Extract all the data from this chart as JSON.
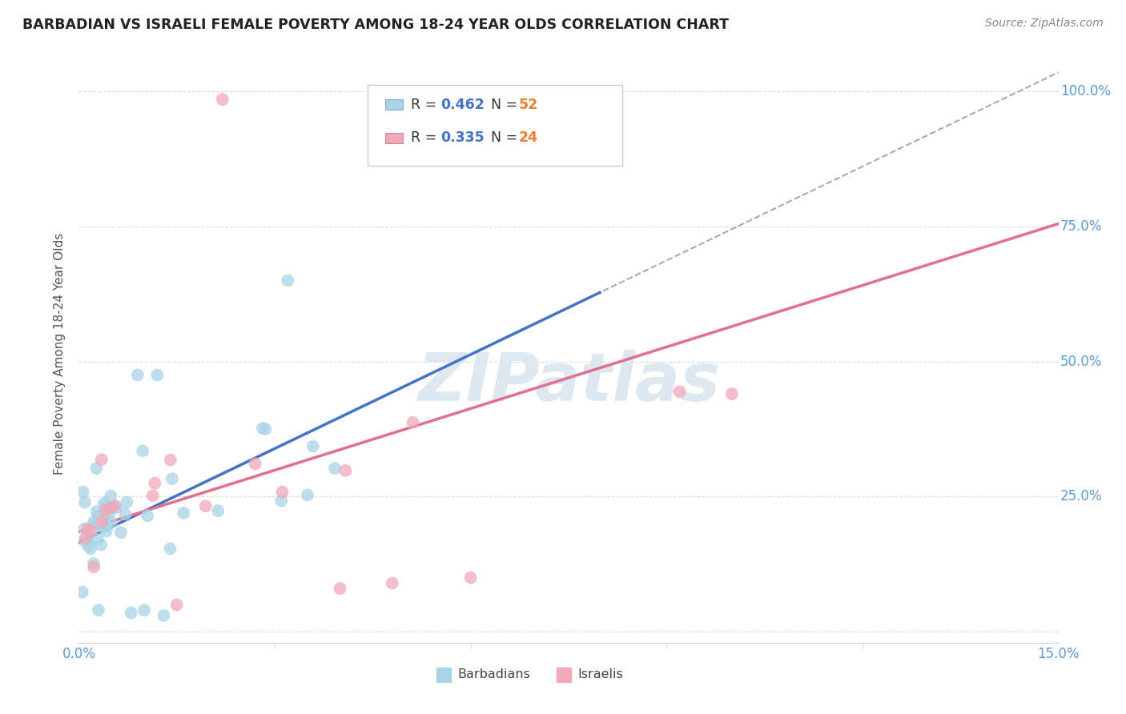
{
  "title": "BARBADIAN VS ISRAELI FEMALE POVERTY AMONG 18-24 YEAR OLDS CORRELATION CHART",
  "source": "Source: ZipAtlas.com",
  "ylabel": "Female Poverty Among 18-24 Year Olds",
  "x_min": 0.0,
  "x_max": 0.15,
  "y_min": -0.05,
  "y_max": 1.05,
  "barbadian_color": "#a8d4e8",
  "israeli_color": "#f0a8b8",
  "barbadian_R": 0.462,
  "barbadian_N": 52,
  "israeli_R": 0.335,
  "israeli_N": 24,
  "legend_R_color": "#4472c4",
  "legend_N_color": "#ed7d31",
  "watermark": "ZIPatlas",
  "watermark_color": "#dde8f0",
  "bg_color": "#ffffff",
  "grid_color": "#cccccc",
  "blue_line_color": "#4472c4",
  "pink_line_color": "#e07090",
  "tick_label_color": "#5b9bd5",
  "ylabel_color": "#555555"
}
